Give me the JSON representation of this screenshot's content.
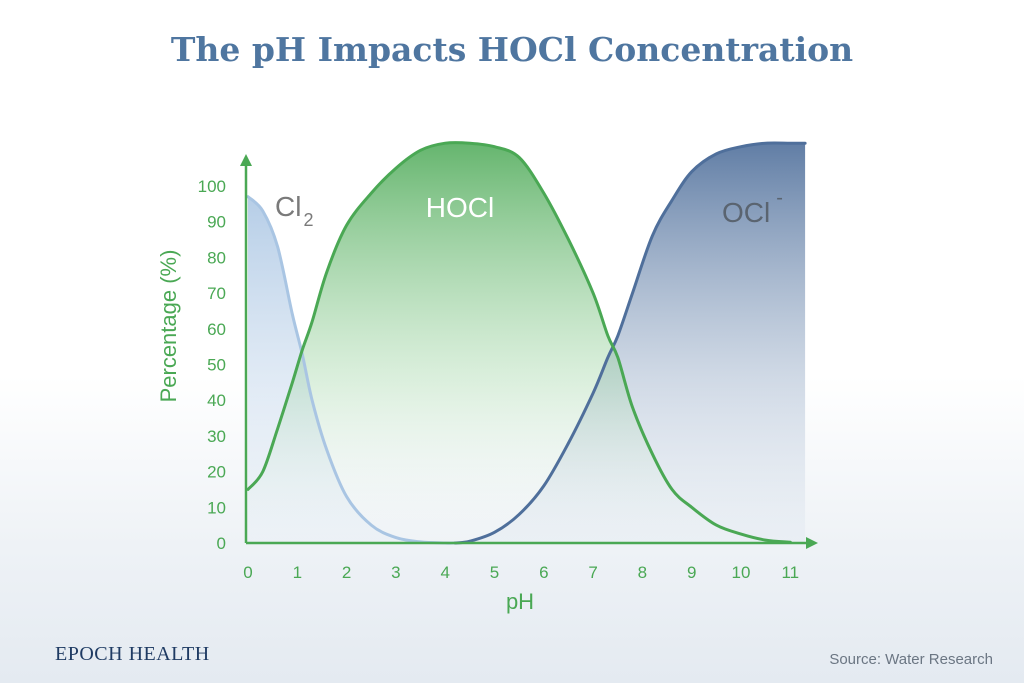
{
  "chart_data": {
    "type": "area",
    "title": "The pH Impacts HOCl Concentration",
    "xlabel": "pH",
    "ylabel": "Percentage (%)",
    "xlim": [
      0,
      11.2
    ],
    "ylim": [
      0,
      112
    ],
    "x_ticks": [
      "0",
      "1",
      "2",
      "3",
      "4",
      "5",
      "6",
      "7",
      "8",
      "9",
      "10",
      "11"
    ],
    "y_ticks": [
      "0",
      "10",
      "20",
      "30",
      "40",
      "50",
      "60",
      "70",
      "80",
      "90",
      "100"
    ],
    "series": [
      {
        "name": "Cl",
        "name_subscript": "2",
        "color": "#a9c5e3",
        "x": [
          0,
          0.3,
          0.6,
          0.9,
          1.1,
          1.3,
          1.6,
          2.0,
          2.5,
          3.0,
          3.5,
          4.0,
          4.2
        ],
        "values": [
          97,
          93,
          83,
          64,
          53,
          40,
          26,
          13,
          5,
          1.5,
          0.3,
          0,
          0
        ]
      },
      {
        "name": "HOCl",
        "color": "#4aa854",
        "x": [
          0,
          0.3,
          0.6,
          0.9,
          1.1,
          1.3,
          1.6,
          2.0,
          2.5,
          3.0,
          3.5,
          4.0,
          4.5,
          5.0,
          5.5,
          6.0,
          6.5,
          7.0,
          7.3,
          7.5,
          7.8,
          8.2,
          8.6,
          9.0,
          9.5,
          10.0,
          10.5,
          11.0
        ],
        "values": [
          15,
          20,
          32,
          45,
          54,
          62,
          76,
          89,
          98,
          105,
          110,
          112,
          112,
          111,
          108,
          98,
          85,
          70,
          58,
          52,
          38,
          25,
          15,
          10,
          5,
          2.5,
          0.8,
          0.2
        ]
      },
      {
        "name": "OCl",
        "name_superscript": "-",
        "color": "#4f6f9b",
        "x": [
          4.2,
          4.5,
          5.0,
          5.5,
          6.0,
          6.5,
          7.0,
          7.3,
          7.5,
          7.8,
          8.2,
          8.6,
          9.0,
          9.5,
          10.0,
          10.5,
          11.0,
          11.3
        ],
        "values": [
          0,
          0.5,
          3,
          8,
          16,
          28,
          42,
          52,
          58,
          70,
          86,
          96,
          104,
          109,
          111,
          112,
          112,
          112
        ]
      }
    ],
    "colors": {
      "axis": "#4aa854",
      "cl2": "#a9c5e3",
      "hocl": "#4aa854",
      "ocl": "#4f6f9b"
    }
  },
  "branding": "EPOCH HEALTH",
  "source": "Source: Water Research"
}
